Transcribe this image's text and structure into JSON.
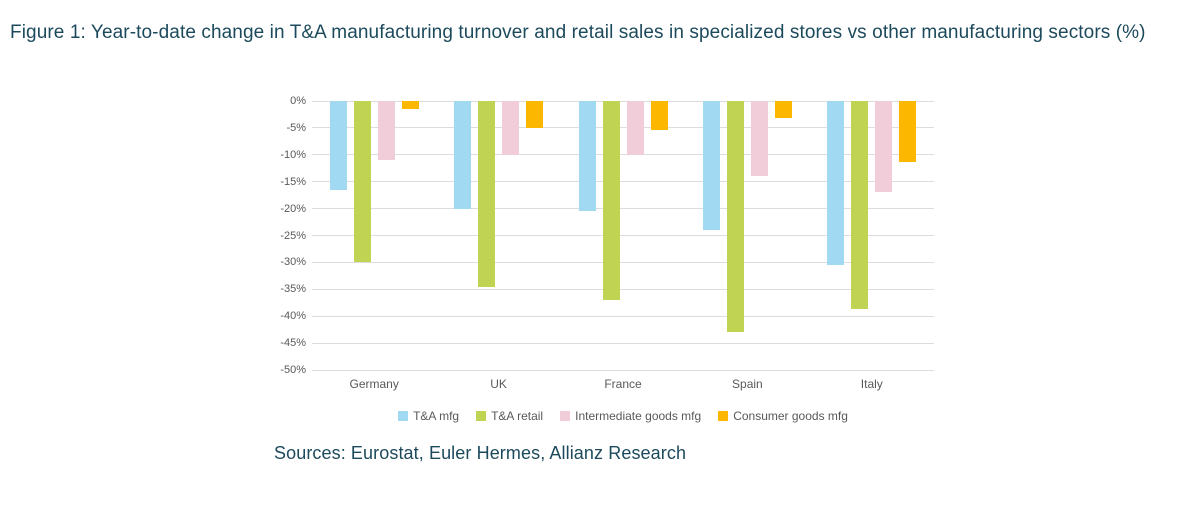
{
  "figure": {
    "title": "Figure 1: Year-to-date change in T&A manufacturing turnover and retail sales in specialized stores vs other manufacturing sectors (%)",
    "sources": "Sources: Eurostat, Euler Hermes, Allianz Research"
  },
  "colors": {
    "title_text": "#1c4a5c",
    "axis_text": "#595959",
    "gridline": "#dcdcdc",
    "background": "#ffffff"
  },
  "chart_data": {
    "type": "bar",
    "title": "",
    "xlabel": "",
    "ylabel": "",
    "categories": [
      "Germany",
      "UK",
      "France",
      "Spain",
      "Italy"
    ],
    "series": [
      {
        "name": "T&A mfg",
        "color": "#a1d8f2",
        "values": [
          -16.5,
          -20.0,
          -20.4,
          -24.0,
          -30.5
        ]
      },
      {
        "name": "T&A retail",
        "color": "#c0d353",
        "values": [
          -30.0,
          -34.5,
          -37.0,
          -43.0,
          -38.6
        ]
      },
      {
        "name": "Intermediate goods mfg",
        "color": "#f1cdda",
        "values": [
          -11.0,
          -10.0,
          -10.0,
          -14.0,
          -17.0
        ]
      },
      {
        "name": "Consumer goods mfg",
        "color": "#fcb800",
        "values": [
          -1.4,
          -5.0,
          -5.3,
          -3.2,
          -11.3
        ]
      }
    ],
    "ylim": [
      -50,
      0
    ],
    "ytick_step": 5,
    "ytick_labels": [
      "0%",
      "-5%",
      "-10%",
      "-15%",
      "-20%",
      "-25%",
      "-30%",
      "-35%",
      "-40%",
      "-45%",
      "-50%"
    ],
    "grid": true,
    "legend_position": "bottom"
  }
}
